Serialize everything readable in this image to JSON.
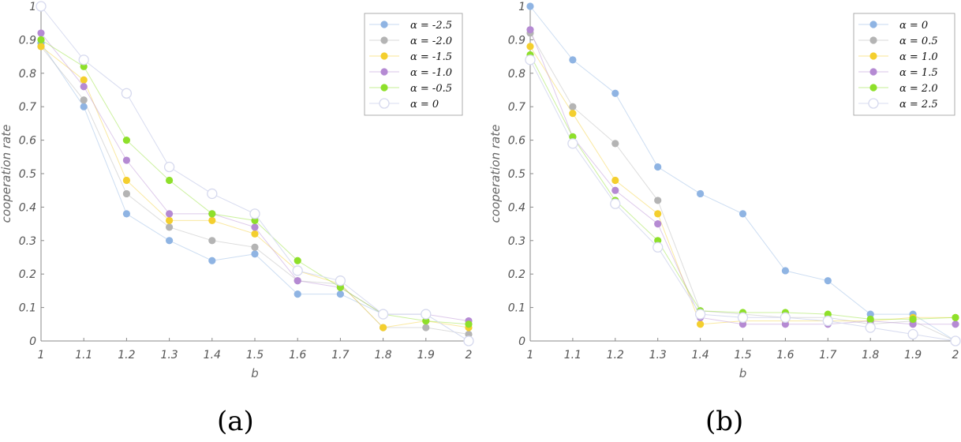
{
  "chart_data": [
    {
      "type": "line",
      "caption": "(a)",
      "xlabel": "b",
      "ylabel": "cooperation rate",
      "x": [
        1,
        1.1,
        1.2,
        1.3,
        1.4,
        1.5,
        1.6,
        1.7,
        1.8,
        1.9,
        2
      ],
      "xticks": [
        "1",
        "1.1",
        "1.2",
        "1.3",
        "1.4",
        "1.5",
        "1.6",
        "1.7",
        "1.8",
        "1.9",
        "2"
      ],
      "yticks": [
        "0",
        "0.1",
        "0.2",
        "0.3",
        "0.4",
        "0.5",
        "0.6",
        "0.7",
        "0.8",
        "0.9",
        "1"
      ],
      "xlim": [
        1,
        2
      ],
      "ylim": [
        0,
        1
      ],
      "legend_position": "top-right",
      "series": [
        {
          "name": "α = -2.5",
          "color": "#8fb4e3",
          "values": [
            0.89,
            0.7,
            0.38,
            0.3,
            0.24,
            0.26,
            0.14,
            0.14,
            0.08,
            0.08,
            0.0
          ]
        },
        {
          "name": "α = -2.0",
          "color": "#b4b4b4",
          "values": [
            0.88,
            0.72,
            0.44,
            0.34,
            0.3,
            0.28,
            0.18,
            0.17,
            0.04,
            0.04,
            0.02
          ]
        },
        {
          "name": "α = -1.5",
          "color": "#f4cf2e",
          "values": [
            0.88,
            0.78,
            0.48,
            0.36,
            0.36,
            0.32,
            0.21,
            0.17,
            0.04,
            0.06,
            0.04
          ]
        },
        {
          "name": "α = -1.0",
          "color": "#b58ad3",
          "values": [
            0.92,
            0.76,
            0.54,
            0.38,
            0.38,
            0.34,
            0.18,
            0.16,
            0.08,
            0.08,
            0.06
          ]
        },
        {
          "name": "α = -0.5",
          "color": "#8ee02a",
          "values": [
            0.9,
            0.82,
            0.6,
            0.48,
            0.38,
            0.36,
            0.24,
            0.16,
            0.08,
            0.06,
            0.05
          ]
        },
        {
          "name": "α = 0",
          "color": "#e8eaf6",
          "hollow": true,
          "values": [
            1.0,
            0.84,
            0.74,
            0.52,
            0.44,
            0.38,
            0.21,
            0.18,
            0.08,
            0.08,
            0.0
          ]
        }
      ]
    },
    {
      "type": "line",
      "caption": "(b)",
      "xlabel": "b",
      "ylabel": "cooperation rate",
      "x": [
        1,
        1.1,
        1.2,
        1.3,
        1.4,
        1.5,
        1.6,
        1.7,
        1.8,
        1.9,
        2
      ],
      "xticks": [
        "1",
        "1.1",
        "1.2",
        "1.3",
        "1.4",
        "1.5",
        "1.6",
        "1.7",
        "1.8",
        "1.9",
        "2"
      ],
      "yticks": [
        "0",
        "0.1",
        "0.2",
        "0.3",
        "0.4",
        "0.5",
        "0.6",
        "0.7",
        "0.8",
        "0.9",
        "1"
      ],
      "xlim": [
        1,
        2
      ],
      "ylim": [
        0,
        1
      ],
      "legend_position": "top-right",
      "series": [
        {
          "name": "α = 0",
          "color": "#8fb4e3",
          "values": [
            1.0,
            0.84,
            0.74,
            0.52,
            0.44,
            0.38,
            0.21,
            0.18,
            0.08,
            0.08,
            0.0
          ]
        },
        {
          "name": "α = 0.5",
          "color": "#b4b4b4",
          "values": [
            0.92,
            0.7,
            0.59,
            0.42,
            0.09,
            0.08,
            0.07,
            0.07,
            0.05,
            0.06,
            0.0
          ]
        },
        {
          "name": "α = 1.0",
          "color": "#f4cf2e",
          "values": [
            0.88,
            0.68,
            0.48,
            0.38,
            0.05,
            0.06,
            0.06,
            0.06,
            0.06,
            0.07,
            0.07
          ]
        },
        {
          "name": "α = 1.5",
          "color": "#b58ad3",
          "values": [
            0.93,
            0.61,
            0.45,
            0.35,
            0.07,
            0.05,
            0.05,
            0.05,
            0.06,
            0.05,
            0.05
          ]
        },
        {
          "name": "α = 2.0",
          "color": "#8ee02a",
          "values": [
            0.855,
            0.61,
            0.42,
            0.3,
            0.09,
            0.085,
            0.085,
            0.08,
            0.065,
            0.065,
            0.07
          ]
        },
        {
          "name": "α = 2.5",
          "color": "#e8eaf6",
          "hollow": true,
          "values": [
            0.84,
            0.59,
            0.41,
            0.28,
            0.08,
            0.07,
            0.07,
            0.06,
            0.04,
            0.02,
            0.0
          ]
        }
      ]
    }
  ]
}
